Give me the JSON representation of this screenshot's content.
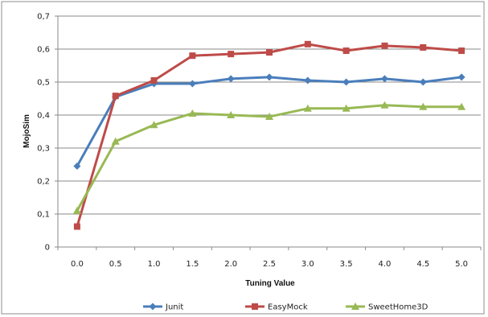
{
  "chart_data": {
    "type": "line",
    "title": "",
    "xlabel": "Tuning Value",
    "ylabel": "MojoSim",
    "categories": [
      "0.0",
      "0.5",
      "1.0",
      "1.5",
      "2.0",
      "2.5",
      "3.0",
      "3.5",
      "4.0",
      "4.5",
      "5.0"
    ],
    "y_ticks": [
      "0",
      "0,1",
      "0,2",
      "0,3",
      "0,4",
      "0,5",
      "0,6",
      "0,7"
    ],
    "ylim": [
      0,
      0.7
    ],
    "grid": "horizontal",
    "legend_position": "bottom",
    "series": [
      {
        "name": "Junit",
        "color": "#4a7ebb",
        "marker": "diamond",
        "values": [
          0.245,
          0.455,
          0.495,
          0.495,
          0.51,
          0.515,
          0.505,
          0.5,
          0.51,
          0.5,
          0.515
        ]
      },
      {
        "name": "EasyMock",
        "color": "#be4b48",
        "marker": "square",
        "values": [
          0.062,
          0.458,
          0.505,
          0.58,
          0.585,
          0.59,
          0.615,
          0.595,
          0.61,
          0.605,
          0.595
        ]
      },
      {
        "name": "SweetHome3D",
        "color": "#98b954",
        "marker": "triangle",
        "values": [
          0.11,
          0.32,
          0.37,
          0.405,
          0.4,
          0.395,
          0.42,
          0.42,
          0.43,
          0.425,
          0.425
        ]
      }
    ]
  }
}
